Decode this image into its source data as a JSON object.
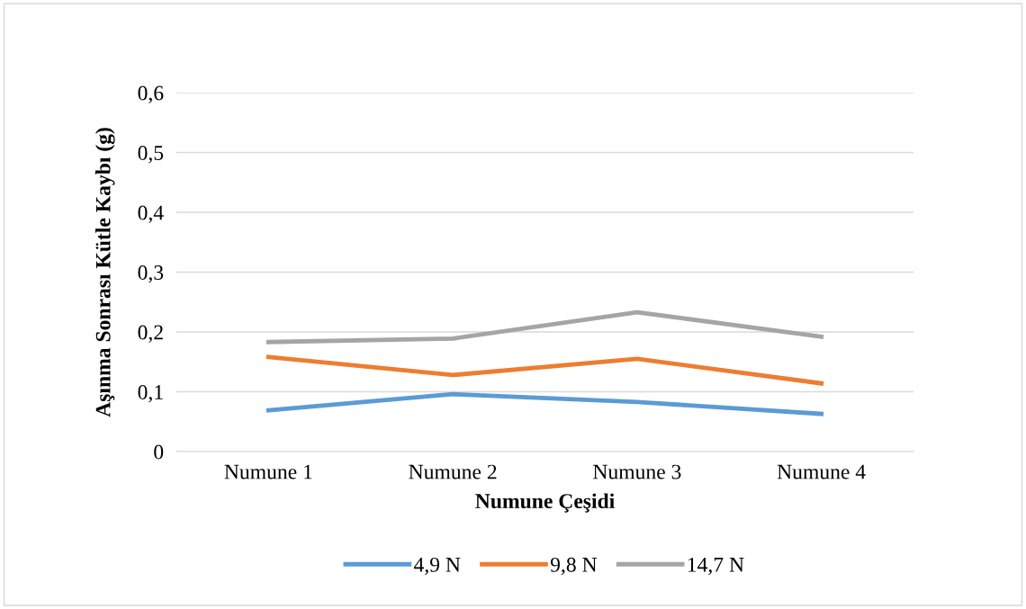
{
  "chart_data": {
    "type": "line",
    "xlabel": "Numune Çeşidi",
    "ylabel": "Aşınma Sonrası Kütle Kaybı (g)",
    "categories": [
      "Numune 1",
      "Numune 2",
      "Numune 3",
      "Numune 4"
    ],
    "series": [
      {
        "name": "4,9 N",
        "color": "#5b9bd5",
        "values": [
          0.069,
          0.096,
          0.083,
          0.063
        ]
      },
      {
        "name": "9,8 N",
        "color": "#ed7d31",
        "values": [
          0.158,
          0.128,
          0.155,
          0.114
        ]
      },
      {
        "name": "14,7 N",
        "color": "#a5a5a5",
        "values": [
          0.183,
          0.189,
          0.233,
          0.192
        ]
      }
    ],
    "ylim": [
      0,
      0.6
    ],
    "yticks": [
      {
        "value": 0,
        "label": "0"
      },
      {
        "value": 0.1,
        "label": "0,1"
      },
      {
        "value": 0.2,
        "label": "0,2"
      },
      {
        "value": 0.3,
        "label": "0,3"
      },
      {
        "value": 0.4,
        "label": "0,4"
      },
      {
        "value": 0.5,
        "label": "0,5"
      },
      {
        "value": 0.6,
        "label": "0,6"
      }
    ],
    "grid": "y",
    "legend": "bottom",
    "marker": "none",
    "line_style": "solid"
  }
}
